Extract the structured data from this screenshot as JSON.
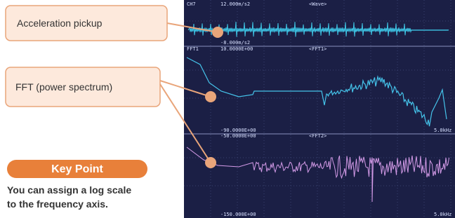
{
  "callouts": [
    "Acceleration pickup",
    "FFT (power spectrum)"
  ],
  "key_point": {
    "title": "Key Point",
    "lines": [
      "You can assign a log scale",
      "to the frequency axis."
    ]
  },
  "screen_labels": [
    "CH7",
    "12.000m/s2",
    "<Wave>",
    "-8.000m/s2",
    "FFT1",
    "10.0000E+00",
    "<FFT1>",
    "-90.0000E+00",
    "-50.0000E+00",
    "<FFT2>",
    "5.0kHz",
    "-150.000E+00",
    "5.0kHz"
  ]
}
